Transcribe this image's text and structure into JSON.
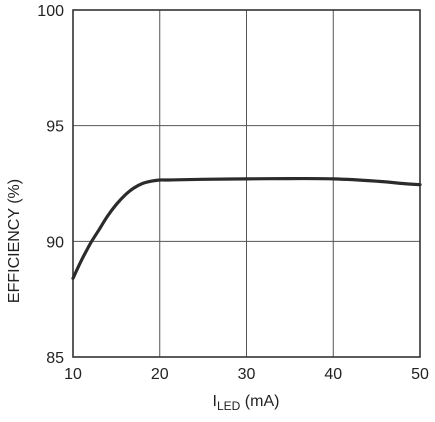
{
  "chart_data": {
    "type": "line",
    "ylabel": "EFFICIENCY (%)",
    "xlabel_main": "I",
    "xlabel_sub": "LED",
    "xlabel_unit": " (mA)",
    "xlim": [
      10,
      50
    ],
    "ylim": [
      85,
      100
    ],
    "x_ticks": [
      10,
      20,
      30,
      40,
      50
    ],
    "y_ticks": [
      85,
      90,
      95,
      100
    ],
    "grid": true,
    "colors": {
      "line": "#2b2b2b",
      "grid": "#555555",
      "text": "#222222"
    },
    "series": [
      {
        "x": [
          10,
          11,
          12,
          13,
          14,
          15,
          16,
          17,
          18,
          19,
          20,
          21,
          22,
          25,
          30,
          35,
          40,
          45,
          48,
          50
        ],
        "y": [
          88.4,
          89.2,
          89.9,
          90.5,
          91.1,
          91.6,
          92.0,
          92.3,
          92.5,
          92.6,
          92.65,
          92.65,
          92.66,
          92.68,
          92.7,
          92.71,
          92.7,
          92.6,
          92.5,
          92.45
        ]
      }
    ]
  }
}
